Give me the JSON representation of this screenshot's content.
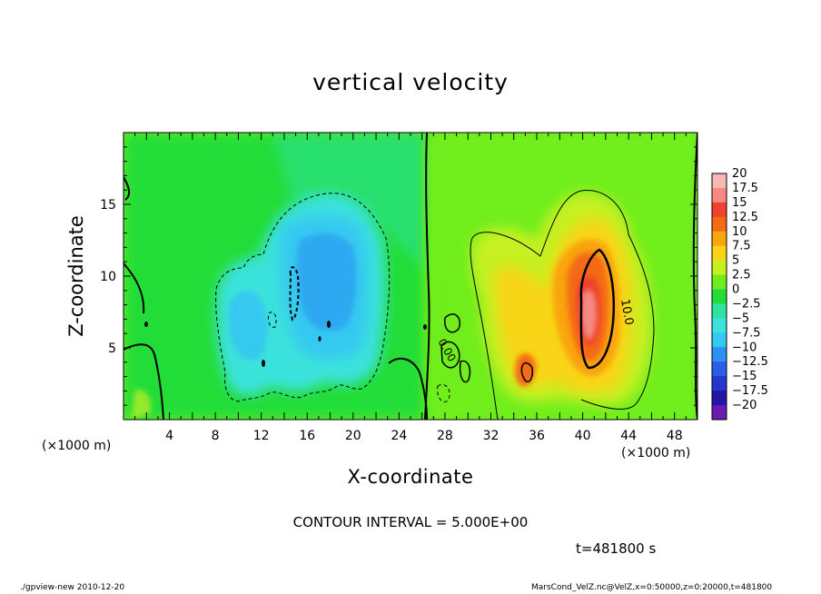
{
  "chart_data": {
    "type": "heatmap",
    "title": "vertical velocity",
    "xlabel": "X-coordinate",
    "ylabel": "Z-coordinate",
    "x_unit_label": "(×1000 m)",
    "xlim": [
      0,
      50
    ],
    "ylim": [
      0,
      20
    ],
    "x_ticks": [
      4,
      8,
      12,
      16,
      20,
      24,
      28,
      32,
      36,
      40,
      44,
      48
    ],
    "y_ticks": [
      5,
      10,
      15
    ],
    "colorbar": {
      "levels": [
        20,
        17.5,
        15,
        12.5,
        10,
        7.5,
        5,
        2.5,
        0,
        -2.5,
        -5,
        -7.5,
        -10,
        -12.5,
        -15,
        -17.5,
        -20
      ],
      "level_labels": [
        "20",
        "17.5",
        "15",
        "12.5",
        "10",
        "7.5",
        "5",
        "2.5",
        "0",
        "−2.5",
        "−5",
        "−7.5",
        "−10",
        "−12.5",
        "−15",
        "−17.5",
        "−20"
      ],
      "colors": [
        "#f7b9b3",
        "#f48a82",
        "#f0422c",
        "#f46a12",
        "#f9a50e",
        "#f8d514",
        "#c6f020",
        "#6fee1e",
        "#22dd39",
        "#2ee3a2",
        "#3ae2dc",
        "#36c9f0",
        "#2e90f0",
        "#2a5ee6",
        "#2436cc",
        "#2414a8",
        "#6a1cb0"
      ]
    },
    "contour_labels": [
      "10.0",
      "0.00"
    ],
    "features": [
      {
        "name": "downdraft",
        "x_center": 17,
        "z_center": 9,
        "peak_value": -9
      },
      {
        "name": "updraft",
        "x_center": 40.5,
        "z_center": 8,
        "peak_value": 18
      }
    ]
  },
  "annotations": {
    "contour_interval": "CONTOUR INTERVAL = 5.000E+00",
    "time": "t=481800 s",
    "footer_left": "./gpview-new  2010-12-20",
    "footer_right": "MarsCond_VelZ.nc@VelZ,x=0:50000,z=0:20000,t=481800"
  }
}
